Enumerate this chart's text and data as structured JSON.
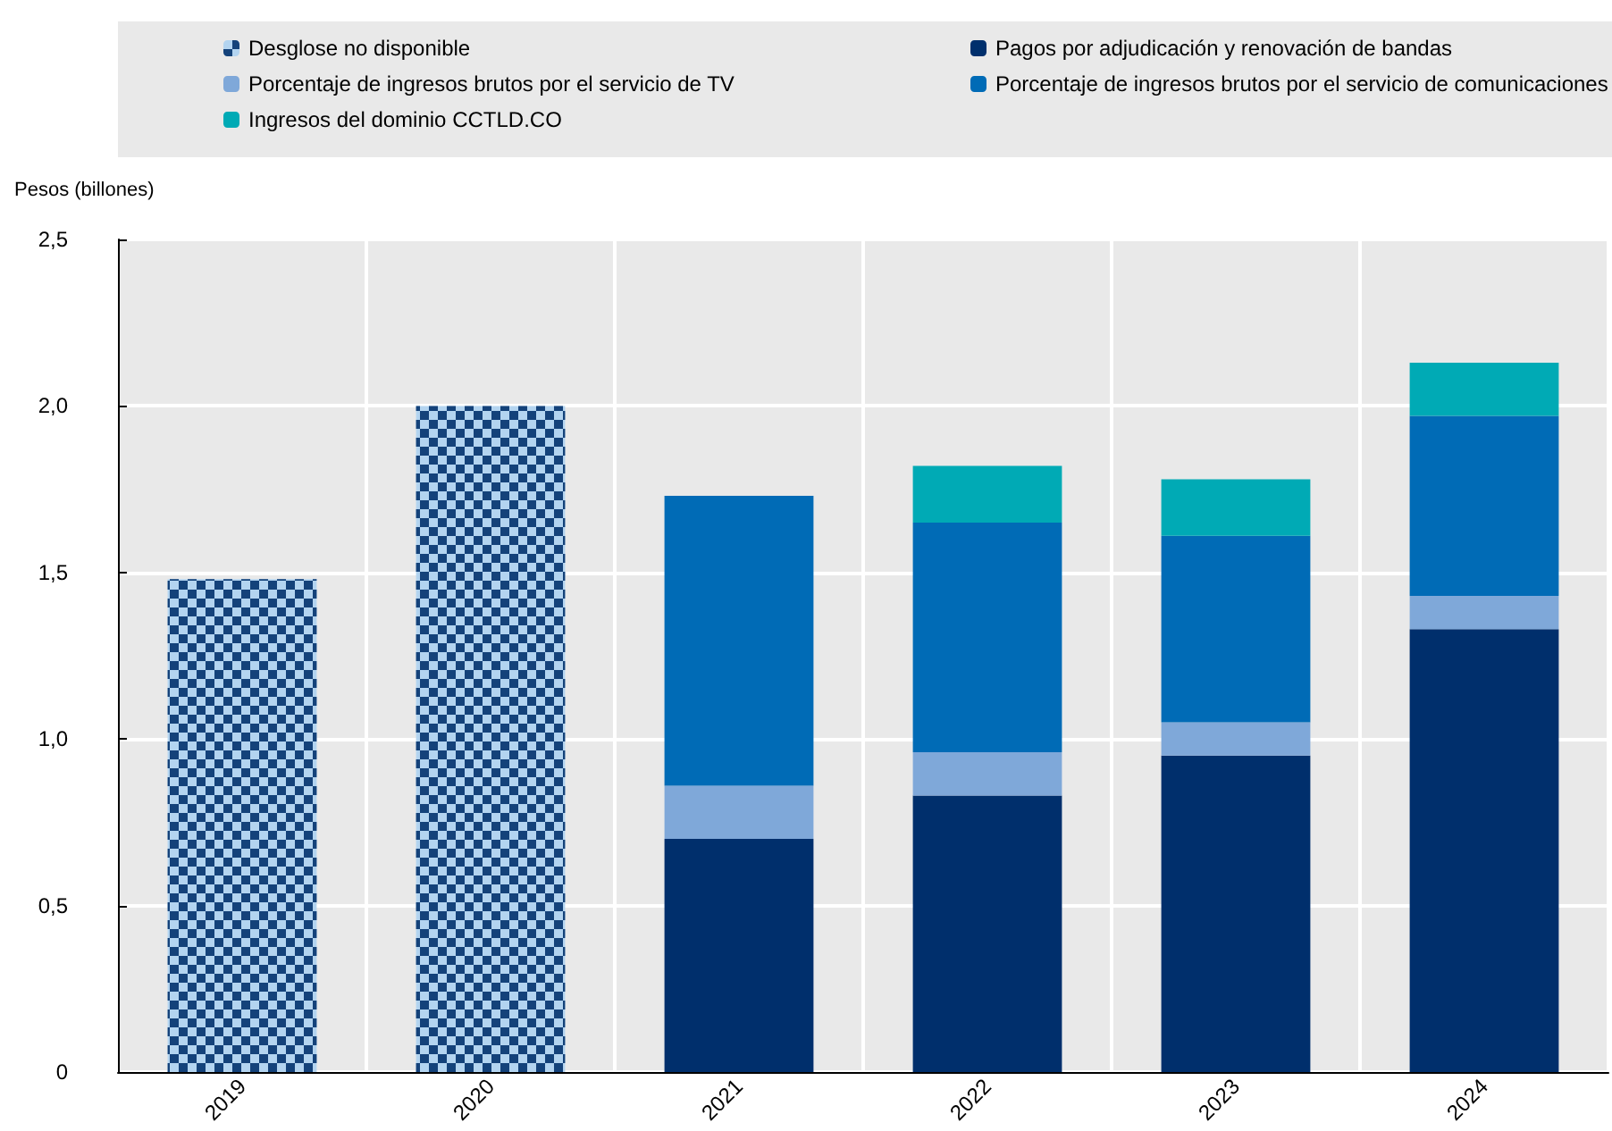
{
  "chart_data": {
    "type": "bar",
    "ylabel": "Pesos (billones)",
    "categories": [
      "2019",
      "2020",
      "2021",
      "2022",
      "2023",
      "2024"
    ],
    "stacked": true,
    "series": [
      {
        "name": "Desglose no disponible",
        "color": "#14427a",
        "values": [
          1.48,
          2.0,
          null,
          null,
          null,
          null
        ]
      },
      {
        "name": "Pagos por adjudicación y renovación de bandas",
        "color": "#002f6c",
        "values": [
          null,
          null,
          0.7,
          0.83,
          0.95,
          1.33
        ]
      },
      {
        "name": "Porcentaje de ingresos brutos por el servicio de TV",
        "color": "#7fa8d9",
        "values": [
          null,
          null,
          0.16,
          0.13,
          0.1,
          0.1
        ]
      },
      {
        "name": "Porcentaje de ingresos brutos por el servicio de comunicaciones",
        "color": "#006bb6",
        "values": [
          null,
          null,
          0.87,
          0.69,
          0.56,
          0.54
        ]
      },
      {
        "name": "Ingresos del dominio CCTLD.CO",
        "color": "#00aab5",
        "values": [
          null,
          null,
          null,
          0.17,
          0.17,
          0.16
        ]
      }
    ],
    "ylim": [
      0,
      2.5
    ],
    "yticks": [
      {
        "value": 0,
        "label": "0"
      },
      {
        "value": 0.5,
        "label": "0,5"
      },
      {
        "value": 1,
        "label": "1,0"
      },
      {
        "value": 1.5,
        "label": "1,5"
      },
      {
        "value": 2,
        "label": "2,0"
      },
      {
        "value": 2.5,
        "label": "2,5"
      }
    ],
    "grid": true,
    "legend": "top"
  }
}
